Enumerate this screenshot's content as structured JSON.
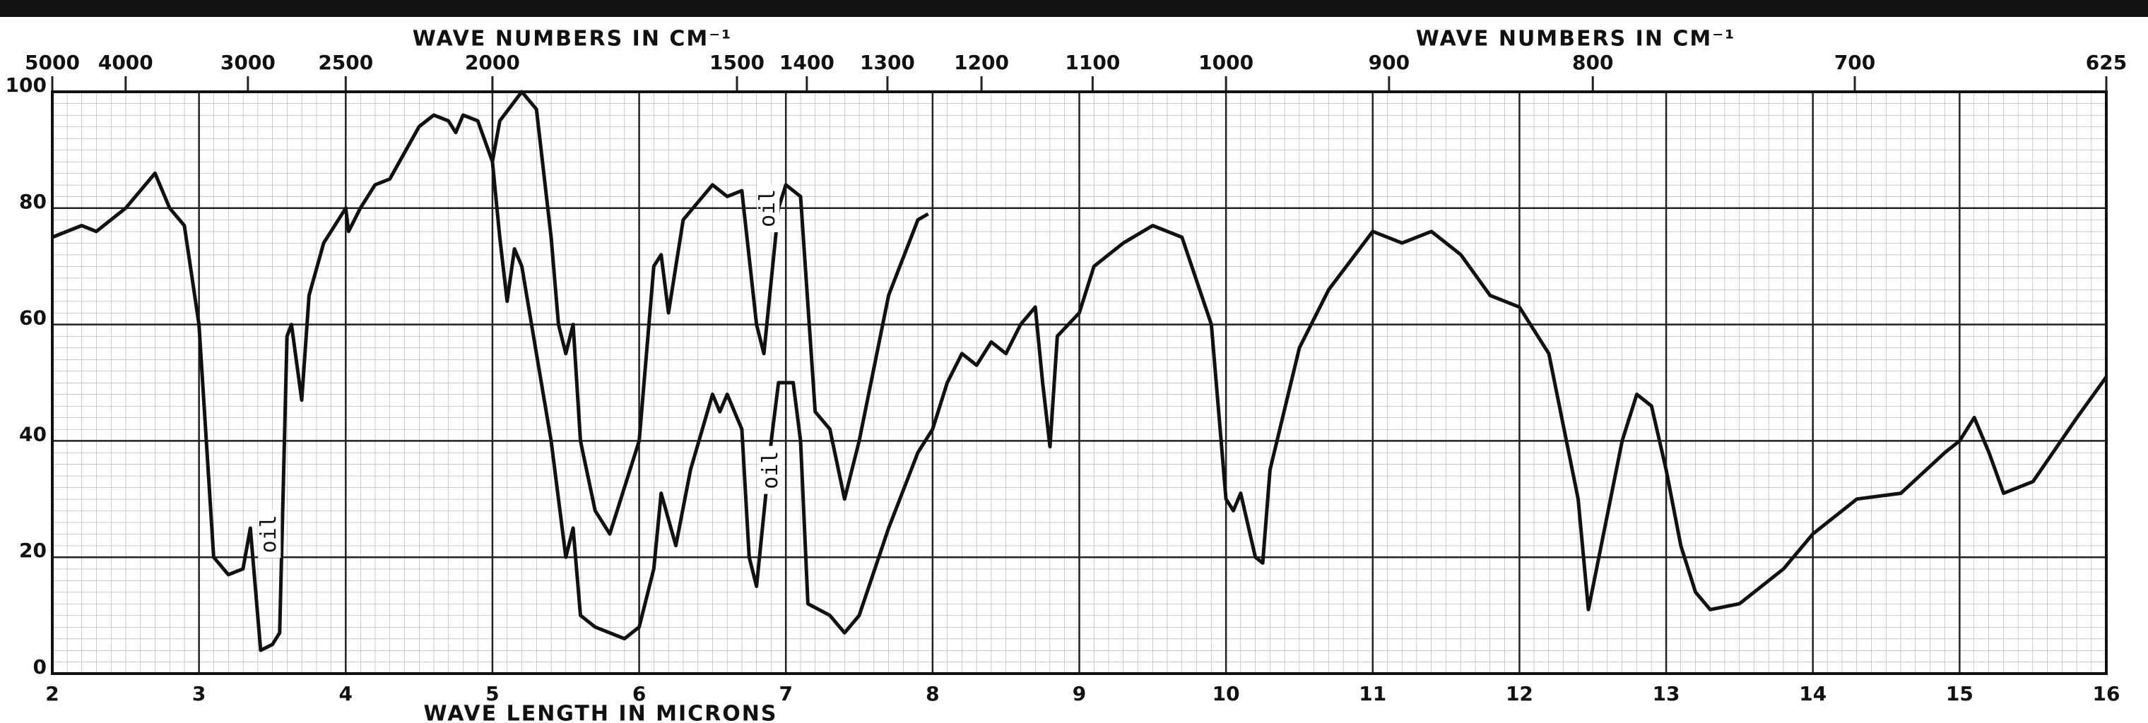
{
  "chart_data": {
    "type": "line",
    "x2labels": [
      "WAVE NUMBERS IN CM⁻¹",
      "WAVE NUMBERS IN CM⁻¹"
    ],
    "xlabel": "WAVE LENGTH IN MICRONS",
    "xlim": [
      2,
      16
    ],
    "ylim": [
      0,
      100
    ],
    "xticks": [
      2,
      3,
      4,
      5,
      6,
      7,
      8,
      9,
      10,
      11,
      12,
      13,
      14,
      15,
      16
    ],
    "yticks": [
      0,
      20,
      40,
      60,
      80,
      100
    ],
    "x2ticks": [
      5000,
      4000,
      3000,
      2500,
      2000,
      1500,
      1400,
      1300,
      1200,
      1100,
      1000,
      900,
      800,
      700,
      625
    ],
    "grid": true,
    "annotations": [
      {
        "text": "oil",
        "x": 3.48,
        "y": 24
      },
      {
        "text": "oil",
        "x": 6.88,
        "y": 80
      },
      {
        "text": "oil",
        "x": 6.9,
        "y": 35
      }
    ],
    "series": [
      {
        "color": "#111111",
        "x": [
          2.0,
          2.2,
          2.3,
          2.5,
          2.7,
          2.8,
          2.9,
          3.0,
          3.05,
          3.1,
          3.2,
          3.3,
          3.35,
          3.4,
          3.42,
          3.5,
          3.55,
          3.6,
          3.63,
          3.7,
          3.75,
          3.85,
          4.0,
          4.02,
          4.1,
          4.2,
          4.3,
          4.5,
          4.6,
          4.7,
          4.75,
          4.8,
          4.9,
          5.0,
          5.05,
          5.1,
          5.15,
          5.2,
          5.3,
          5.4,
          5.5,
          5.55,
          5.6,
          5.7,
          5.9,
          6.0,
          6.1,
          6.15,
          6.25,
          6.35,
          6.5,
          6.55,
          6.6,
          6.7,
          6.75,
          6.8,
          6.9,
          6.95,
          7.05,
          7.1,
          7.15,
          7.3,
          7.4,
          7.5,
          7.7,
          7.9,
          8.0,
          8.1,
          8.2,
          8.3,
          8.4,
          8.5,
          8.6,
          8.7,
          8.75,
          8.8,
          8.85,
          9.0,
          9.1,
          9.3,
          9.5,
          9.7,
          9.9,
          10.0,
          10.05,
          10.1,
          10.2,
          10.25,
          10.3,
          10.5,
          10.7,
          11.0,
          11.2,
          11.4,
          11.6,
          11.8,
          12.0,
          12.2,
          12.4,
          12.47,
          12.7,
          12.8,
          12.9,
          13.0,
          13.1,
          13.2,
          13.3,
          13.5,
          13.8,
          14.0,
          14.3,
          14.6,
          14.9,
          15.0,
          15.1,
          15.2,
          15.3,
          15.5,
          15.8,
          16.0
        ],
        "values": [
          75,
          77,
          76,
          80,
          86,
          80,
          77,
          60,
          40,
          20,
          17,
          18,
          25,
          10,
          4,
          5,
          7,
          58,
          60,
          47,
          65,
          74,
          80,
          76,
          80,
          84,
          85,
          94,
          96,
          95,
          93,
          96,
          95,
          88,
          75,
          64,
          73,
          70,
          55,
          40,
          20,
          25,
          10,
          8,
          6,
          8,
          18,
          31,
          22,
          35,
          48,
          45,
          48,
          42,
          20,
          15,
          40,
          50,
          50,
          40,
          12,
          10,
          7,
          10,
          25,
          38,
          42,
          50,
          55,
          53,
          57,
          55,
          60,
          63,
          50,
          39,
          58,
          62,
          70,
          74,
          77,
          75,
          60,
          30,
          28,
          31,
          20,
          19,
          35,
          56,
          66,
          76,
          74,
          76,
          72,
          65,
          63,
          55,
          30,
          11,
          40,
          48,
          46,
          35,
          22,
          14,
          11,
          12,
          18,
          24,
          30,
          31,
          38,
          40,
          44,
          38,
          31,
          33,
          44,
          51
        ]
      },
      {
        "color": "#111111",
        "x": [
          5.0,
          5.05,
          5.2,
          5.3,
          5.4,
          5.45,
          5.5,
          5.55,
          5.6,
          5.7,
          5.8,
          6.0,
          6.1,
          6.15,
          6.2,
          6.3,
          6.5,
          6.6,
          6.7,
          6.8,
          6.85,
          6.95,
          7.0,
          7.1,
          7.2,
          7.3,
          7.4,
          7.5,
          7.7,
          7.9,
          7.97
        ],
        "values": [
          88,
          95,
          100,
          97,
          75,
          60,
          55,
          60,
          40,
          28,
          24,
          40,
          70,
          72,
          62,
          78,
          84,
          82,
          83,
          60,
          55,
          80,
          84,
          82,
          45,
          42,
          30,
          40,
          65,
          78,
          79
        ]
      }
    ]
  }
}
